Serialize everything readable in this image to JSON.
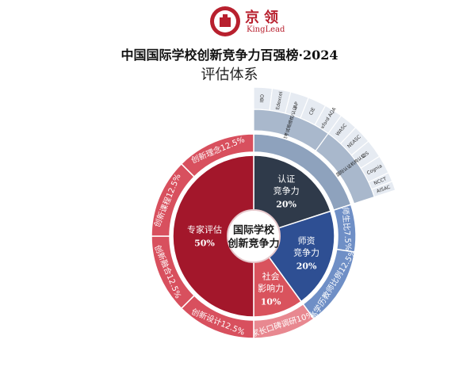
{
  "header": {
    "logo_cn": "京领",
    "logo_en": "KingLead",
    "title": "中国国际学校创新竞争力百强榜·2024",
    "subtitle": "评估体系"
  },
  "center_label": [
    "国际学校",
    "创新竞争力"
  ],
  "inner_ring": [
    {
      "label": [
        "认证",
        "竞争力"
      ],
      "percent": "20%",
      "value": 20,
      "color": "#2f3a4a"
    },
    {
      "label": [
        "师资",
        "竞争力"
      ],
      "percent": "20%",
      "value": 20,
      "color": "#2e4f93"
    },
    {
      "label": [
        "社会",
        "影响力"
      ],
      "percent": "10%",
      "value": 10,
      "color": "#d9535d"
    },
    {
      "label": [
        "专家评估"
      ],
      "percent": "50%",
      "value": 50,
      "color": "#a3172b"
    }
  ],
  "middle_ring": [
    {
      "label": "认证",
      "value": 20,
      "color": "#8ea2bd"
    },
    {
      "label": "师生比7.5%",
      "value": 7.5,
      "color": "#6f8fc6"
    },
    {
      "label": "高学历教师比例12.5%",
      "value": 12.5,
      "color": "#6f8fc6"
    },
    {
      "label": "家长口碑调研10%",
      "value": 10,
      "color": "#e88890"
    },
    {
      "label": "创新设计12.5%",
      "value": 12.5,
      "color": "#d8505e"
    },
    {
      "label": "创新融合12.5%",
      "value": 12.5,
      "color": "#d8505e"
    },
    {
      "label": "创新课程12.5%",
      "value": 12.5,
      "color": "#d8505e"
    },
    {
      "label": "创新理念12.5%",
      "value": 12.5,
      "color": "#d8505e"
    }
  ],
  "accreditation_groups": [
    {
      "label": "主流考试局授权/认证",
      "start": 0,
      "end": 10
    },
    {
      "label": "主流国际认证机构认证",
      "start": 10,
      "end": 20
    }
  ],
  "accreditation_bodies": [
    {
      "label": "IBO",
      "start": 0,
      "end": 2
    },
    {
      "label": "Edexcel",
      "start": 2,
      "end": 4
    },
    {
      "label": "AP",
      "start": 4,
      "end": 6
    },
    {
      "label": "CIE",
      "start": 6,
      "end": 8
    },
    {
      "label": "Oxford AQA",
      "start": 8,
      "end": 10
    },
    {
      "label": "WASC",
      "start": 10,
      "end": 12
    },
    {
      "label": "NEASC",
      "start": 12,
      "end": 14
    },
    {
      "label": "CIS",
      "start": 14,
      "end": 16
    },
    {
      "label": "Cognia",
      "start": 16,
      "end": 18
    },
    {
      "label": "NCCT",
      "start": 18,
      "end": 19
    },
    {
      "label": "AISAC",
      "start": 19,
      "end": 20
    }
  ]
}
